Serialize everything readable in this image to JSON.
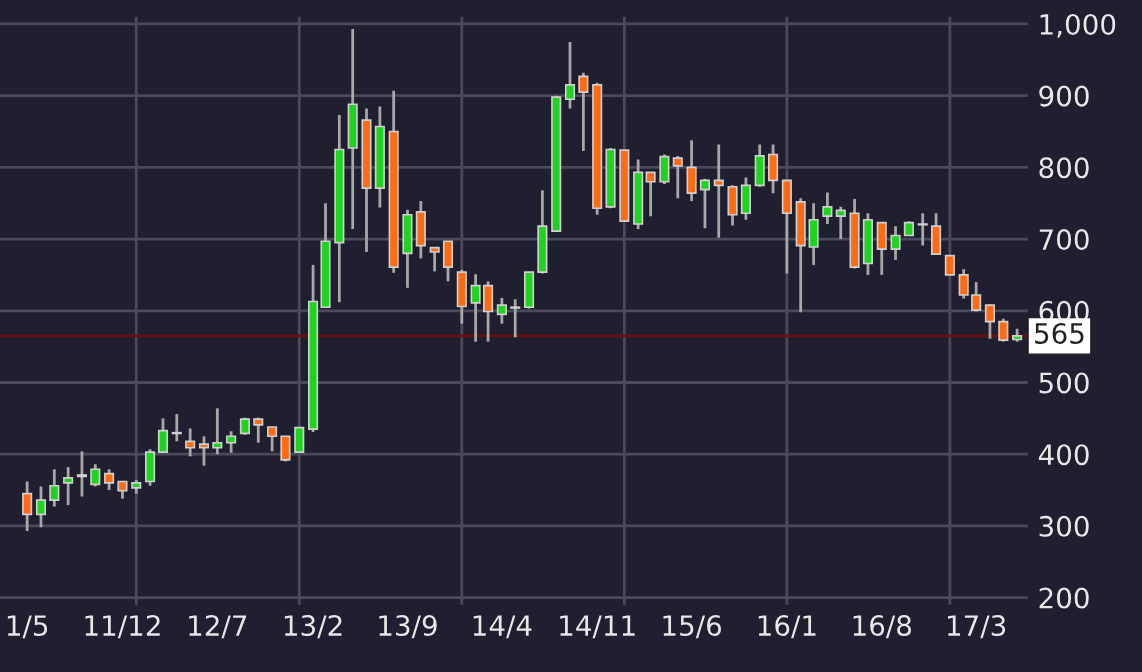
{
  "chart_data": {
    "type": "candlestick",
    "x": [
      "2011-05",
      "2011-06",
      "2011-07",
      "2011-08",
      "2011-09",
      "2011-10",
      "2011-11",
      "2011-12",
      "2012-01",
      "2012-02",
      "2012-03",
      "2012-04",
      "2012-05",
      "2012-06",
      "2012-07",
      "2012-08",
      "2012-09",
      "2012-10",
      "2012-11",
      "2012-12",
      "2013-01",
      "2013-02",
      "2013-03",
      "2013-04",
      "2013-05",
      "2013-06",
      "2013-07",
      "2013-08",
      "2013-09",
      "2013-10",
      "2013-11",
      "2013-12",
      "2014-01",
      "2014-02",
      "2014-03",
      "2014-04",
      "2014-05",
      "2014-06",
      "2014-07",
      "2014-08",
      "2014-09",
      "2014-10",
      "2014-11",
      "2014-12",
      "2015-01",
      "2015-02",
      "2015-03",
      "2015-04",
      "2015-05",
      "2015-06",
      "2015-07",
      "2015-08",
      "2015-09",
      "2015-10",
      "2015-11",
      "2015-12",
      "2016-01",
      "2016-02",
      "2016-03",
      "2016-04",
      "2016-05",
      "2016-06",
      "2016-07",
      "2016-08",
      "2016-09",
      "2016-10",
      "2016-11",
      "2016-12",
      "2017-01",
      "2017-02",
      "2017-03",
      "2017-04",
      "2017-05",
      "2017-06"
    ],
    "ohlc": [
      [
        345,
        362,
        293,
        316
      ],
      [
        316,
        355,
        298,
        336
      ],
      [
        336,
        379,
        327,
        356
      ],
      [
        360,
        382,
        329,
        367
      ],
      [
        369,
        404,
        341,
        371
      ],
      [
        358,
        386,
        355,
        379
      ],
      [
        373,
        379,
        350,
        360
      ],
      [
        362,
        362,
        338,
        349
      ],
      [
        353,
        364,
        345,
        360
      ],
      [
        362,
        407,
        356,
        403
      ],
      [
        403,
        450,
        402,
        433
      ],
      [
        429,
        456,
        418,
        430
      ],
      [
        418,
        436,
        397,
        409
      ],
      [
        414,
        425,
        384,
        409
      ],
      [
        409,
        464,
        400,
        416
      ],
      [
        416,
        432,
        402,
        425
      ],
      [
        429,
        451,
        427,
        449
      ],
      [
        449,
        451,
        416,
        441
      ],
      [
        438,
        438,
        404,
        425
      ],
      [
        425,
        425,
        390,
        392
      ],
      [
        403,
        438,
        402,
        437
      ],
      [
        435,
        664,
        431,
        613
      ],
      [
        605,
        750,
        605,
        697
      ],
      [
        695,
        873,
        612,
        825
      ],
      [
        827,
        993,
        714,
        888
      ],
      [
        866,
        882,
        682,
        771
      ],
      [
        771,
        885,
        744,
        857
      ],
      [
        850,
        907,
        653,
        661
      ],
      [
        680,
        741,
        632,
        734
      ],
      [
        738,
        753,
        673,
        691
      ],
      [
        688,
        688,
        655,
        682
      ],
      [
        697,
        697,
        641,
        661
      ],
      [
        654,
        657,
        582,
        606
      ],
      [
        611,
        651,
        557,
        635
      ],
      [
        635,
        641,
        557,
        599
      ],
      [
        595,
        618,
        582,
        608
      ],
      [
        604,
        616,
        563,
        605
      ],
      [
        605,
        654,
        603,
        654
      ],
      [
        654,
        768,
        652,
        718
      ],
      [
        711,
        900,
        710,
        898
      ],
      [
        895,
        975,
        882,
        915
      ],
      [
        927,
        932,
        823,
        905
      ],
      [
        915,
        918,
        734,
        743
      ],
      [
        745,
        827,
        743,
        825
      ],
      [
        824,
        824,
        724,
        725
      ],
      [
        721,
        811,
        714,
        793
      ],
      [
        793,
        793,
        732,
        780
      ],
      [
        780,
        818,
        777,
        815
      ],
      [
        813,
        816,
        757,
        802
      ],
      [
        800,
        838,
        753,
        764
      ],
      [
        769,
        784,
        715,
        782
      ],
      [
        782,
        832,
        702,
        775
      ],
      [
        773,
        775,
        719,
        734
      ],
      [
        736,
        786,
        727,
        775
      ],
      [
        775,
        832,
        773,
        816
      ],
      [
        818,
        832,
        764,
        782
      ],
      [
        782,
        782,
        652,
        736
      ],
      [
        752,
        757,
        598,
        691
      ],
      [
        689,
        750,
        664,
        727
      ],
      [
        732,
        765,
        721,
        745
      ],
      [
        732,
        745,
        700,
        740
      ],
      [
        736,
        756,
        659,
        661
      ],
      [
        666,
        736,
        650,
        727
      ],
      [
        723,
        723,
        650,
        686
      ],
      [
        686,
        718,
        671,
        705
      ],
      [
        705,
        725,
        705,
        723
      ],
      [
        720,
        736,
        691,
        721
      ],
      [
        718,
        736,
        679,
        679
      ],
      [
        677,
        677,
        650,
        650
      ],
      [
        650,
        658,
        617,
        622
      ],
      [
        622,
        640,
        599,
        601
      ],
      [
        608,
        609,
        561,
        585
      ],
      [
        585,
        589,
        557,
        559
      ],
      [
        560,
        575,
        557,
        565
      ]
    ],
    "xlim": [
      "2011-03-01",
      "2017-06-25"
    ],
    "xticks": [
      {
        "value": "2011-05",
        "label": "1/5"
      },
      {
        "value": "2011-12",
        "label": "11/12"
      },
      {
        "value": "2012-07",
        "label": "12/7"
      },
      {
        "value": "2013-02",
        "label": "13/2"
      },
      {
        "value": "2013-09",
        "label": "13/9"
      },
      {
        "value": "2014-04",
        "label": "14/4"
      },
      {
        "value": "2014-11",
        "label": "14/11"
      },
      {
        "value": "2015-06",
        "label": "15/6"
      },
      {
        "value": "2016-01",
        "label": "16/1"
      },
      {
        "value": "2016-08",
        "label": "16/8"
      },
      {
        "value": "2017-03",
        "label": "17/3"
      }
    ],
    "ylim": [
      190,
      1010
    ],
    "yticks": [
      200,
      300,
      400,
      500,
      600,
      700,
      800,
      900,
      {
        "value": 1000,
        "label": "1,000"
      }
    ],
    "grid": "y",
    "ref_lines": [
      {
        "axis": "x",
        "value": "2012-01",
        "label": null,
        "color": "#4a4a5c"
      },
      {
        "axis": "x",
        "value": "2013-01",
        "label": null,
        "color": "#4a4a5c"
      },
      {
        "axis": "x",
        "value": "2014-01",
        "label": null,
        "color": "#4a4a5c"
      },
      {
        "axis": "x",
        "value": "2015-01",
        "label": null,
        "color": "#4a4a5c"
      },
      {
        "axis": "x",
        "value": "2016-01",
        "label": null,
        "color": "#4a4a5c"
      },
      {
        "axis": "x",
        "value": "2017-01",
        "label": null,
        "color": "#4a4a5c"
      },
      {
        "axis": "y",
        "value": 565,
        "label": "565",
        "color": "#6b1010"
      }
    ]
  }
}
